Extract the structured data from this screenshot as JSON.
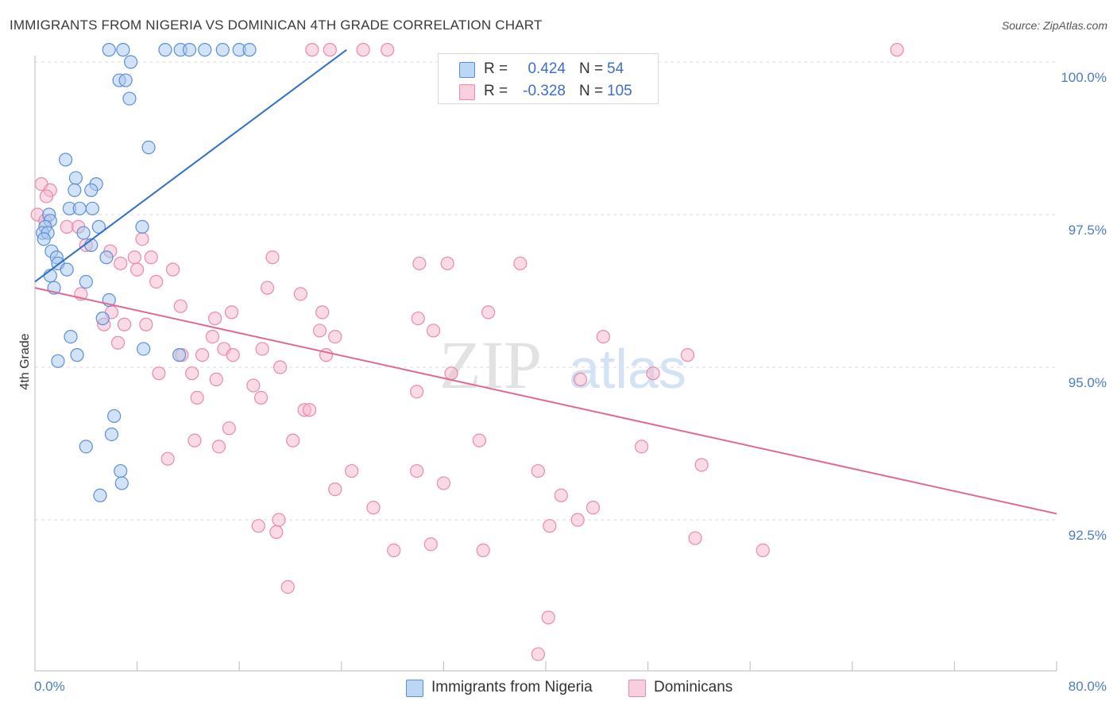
{
  "title": "IMMIGRANTS FROM NIGERIA VS DOMINICAN 4TH GRADE CORRELATION CHART",
  "source": "Source: ZipAtlas.com",
  "watermark": {
    "zip": "ZIP",
    "atlas": "atlas"
  },
  "legend": {
    "rows": [
      {
        "r_label": "R =",
        "r_value": "0.424",
        "n_label": "N =",
        "n_value": "54"
      },
      {
        "r_label": "R =",
        "r_value": "-0.328",
        "n_label": "N =",
        "n_value": "105"
      }
    ]
  },
  "bottom_legend": {
    "series1": "Immigrants from Nigeria",
    "series2": "Dominicans"
  },
  "colors": {
    "blue_fill": "#a8c8f0",
    "blue_stroke": "#5b8fd6",
    "blue_line": "#2f6fc8",
    "pink_fill": "#f5b8cb",
    "pink_stroke": "#e98aa8",
    "pink_line": "#e06893",
    "tick": "#4a7cc9",
    "grid": "#dcdcdc"
  },
  "chart_data": {
    "type": "scatter",
    "title": "IMMIGRANTS FROM NIGERIA VS DOMINICAN 4TH GRADE CORRELATION CHART",
    "xlabel": "",
    "ylabel": "4th Grade",
    "xlim": [
      0,
      80
    ],
    "ylim": [
      90,
      100.2
    ],
    "x_ticks": [
      {
        "v": 0,
        "label": "0.0%"
      },
      {
        "v": 80,
        "label": "80.0%"
      }
    ],
    "y_ticks": [
      {
        "v": 100,
        "label": "100.0%"
      },
      {
        "v": 97.5,
        "label": "97.5%"
      },
      {
        "v": 95,
        "label": "95.0%"
      },
      {
        "v": 92.5,
        "label": "92.5%"
      }
    ],
    "grid": true,
    "legend_placement": "top-center",
    "series": [
      {
        "name": "Immigrants from Nigeria",
        "R": 0.424,
        "N": 54,
        "trend": [
          [
            0,
            96.4
          ],
          [
            24.4,
            100.2
          ]
        ],
        "points": [
          [
            5.8,
            100.2
          ],
          [
            6.9,
            100.2
          ],
          [
            10.2,
            100.2
          ],
          [
            11.4,
            100.2
          ],
          [
            12.1,
            100.2
          ],
          [
            13.3,
            100.2
          ],
          [
            14.7,
            100.2
          ],
          [
            16.0,
            100.2
          ],
          [
            16.8,
            100.2
          ],
          [
            7.5,
            100.0
          ],
          [
            6.6,
            99.7
          ],
          [
            7.1,
            99.7
          ],
          [
            7.4,
            99.4
          ],
          [
            8.9,
            98.6
          ],
          [
            2.4,
            98.4
          ],
          [
            3.2,
            98.1
          ],
          [
            4.8,
            98.0
          ],
          [
            3.1,
            97.9
          ],
          [
            4.4,
            97.9
          ],
          [
            2.7,
            97.6
          ],
          [
            3.5,
            97.6
          ],
          [
            4.5,
            97.6
          ],
          [
            1.1,
            97.5
          ],
          [
            1.2,
            97.4
          ],
          [
            0.8,
            97.3
          ],
          [
            0.6,
            97.2
          ],
          [
            5.0,
            97.3
          ],
          [
            8.4,
            97.3
          ],
          [
            1.0,
            97.2
          ],
          [
            0.7,
            97.1
          ],
          [
            3.8,
            97.2
          ],
          [
            1.3,
            96.9
          ],
          [
            1.7,
            96.8
          ],
          [
            1.8,
            96.7
          ],
          [
            4.4,
            97.0
          ],
          [
            5.6,
            96.8
          ],
          [
            2.5,
            96.6
          ],
          [
            1.2,
            96.5
          ],
          [
            1.5,
            96.3
          ],
          [
            4.0,
            96.4
          ],
          [
            5.8,
            96.1
          ],
          [
            5.3,
            95.8
          ],
          [
            2.8,
            95.5
          ],
          [
            3.3,
            95.2
          ],
          [
            8.5,
            95.3
          ],
          [
            1.8,
            95.1
          ],
          [
            11.3,
            95.2
          ],
          [
            6.2,
            94.2
          ],
          [
            6.0,
            93.9
          ],
          [
            4.0,
            93.7
          ],
          [
            6.7,
            93.3
          ],
          [
            6.8,
            93.1
          ],
          [
            5.1,
            92.9
          ]
        ]
      },
      {
        "name": "Dominicans",
        "R": -0.328,
        "N": 105,
        "trend": [
          [
            0,
            96.3
          ],
          [
            80,
            92.6
          ]
        ],
        "points": [
          [
            21.7,
            100.2
          ],
          [
            23.1,
            100.2
          ],
          [
            25.7,
            100.2
          ],
          [
            27.6,
            100.2
          ],
          [
            67.5,
            100.2
          ],
          [
            0.5,
            98.0
          ],
          [
            1.2,
            97.9
          ],
          [
            0.9,
            97.8
          ],
          [
            0.2,
            97.5
          ],
          [
            0.8,
            97.4
          ],
          [
            2.5,
            97.3
          ],
          [
            3.4,
            97.3
          ],
          [
            4.0,
            97.0
          ],
          [
            5.9,
            96.9
          ],
          [
            8.4,
            97.1
          ],
          [
            18.6,
            96.8
          ],
          [
            32.3,
            96.7
          ],
          [
            38.0,
            96.7
          ],
          [
            30.1,
            96.7
          ],
          [
            6.7,
            96.7
          ],
          [
            7.8,
            96.8
          ],
          [
            9.1,
            96.8
          ],
          [
            8.0,
            96.6
          ],
          [
            10.8,
            96.6
          ],
          [
            3.6,
            96.2
          ],
          [
            9.5,
            96.4
          ],
          [
            18.2,
            96.3
          ],
          [
            20.8,
            96.2
          ],
          [
            11.4,
            96.0
          ],
          [
            14.1,
            95.8
          ],
          [
            15.4,
            95.9
          ],
          [
            22.5,
            95.9
          ],
          [
            30.0,
            95.8
          ],
          [
            35.5,
            95.9
          ],
          [
            5.4,
            95.7
          ],
          [
            6.0,
            95.9
          ],
          [
            7.0,
            95.7
          ],
          [
            8.7,
            95.7
          ],
          [
            13.9,
            95.5
          ],
          [
            22.3,
            95.6
          ],
          [
            31.2,
            95.6
          ],
          [
            6.5,
            95.4
          ],
          [
            11.5,
            95.2
          ],
          [
            13.1,
            95.2
          ],
          [
            14.8,
            95.3
          ],
          [
            15.5,
            95.2
          ],
          [
            17.8,
            95.3
          ],
          [
            22.8,
            95.2
          ],
          [
            23.5,
            95.5
          ],
          [
            44.5,
            95.5
          ],
          [
            51.1,
            95.2
          ],
          [
            9.7,
            94.9
          ],
          [
            12.3,
            94.9
          ],
          [
            14.2,
            94.8
          ],
          [
            17.1,
            94.7
          ],
          [
            19.2,
            95.0
          ],
          [
            32.6,
            94.9
          ],
          [
            29.9,
            94.6
          ],
          [
            12.7,
            94.5
          ],
          [
            17.7,
            94.5
          ],
          [
            21.1,
            94.3
          ],
          [
            21.5,
            94.3
          ],
          [
            42.7,
            94.8
          ],
          [
            48.4,
            94.9
          ],
          [
            15.2,
            94.0
          ],
          [
            20.2,
            93.8
          ],
          [
            12.5,
            93.8
          ],
          [
            14.4,
            93.7
          ],
          [
            34.8,
            93.8
          ],
          [
            47.5,
            93.7
          ],
          [
            10.4,
            93.5
          ],
          [
            24.8,
            93.3
          ],
          [
            29.9,
            93.3
          ],
          [
            32.0,
            93.1
          ],
          [
            39.4,
            93.3
          ],
          [
            52.2,
            93.4
          ],
          [
            23.5,
            93.0
          ],
          [
            41.2,
            92.9
          ],
          [
            26.5,
            92.7
          ],
          [
            43.7,
            92.7
          ],
          [
            17.5,
            92.4
          ],
          [
            19.1,
            92.5
          ],
          [
            42.5,
            92.5
          ],
          [
            40.3,
            92.4
          ],
          [
            18.9,
            92.3
          ],
          [
            51.7,
            92.2
          ],
          [
            31.0,
            92.1
          ],
          [
            28.1,
            92.0
          ],
          [
            35.1,
            92.0
          ],
          [
            57.0,
            92.0
          ],
          [
            19.8,
            91.4
          ],
          [
            40.2,
            90.9
          ],
          [
            39.4,
            90.3
          ]
        ]
      }
    ]
  }
}
